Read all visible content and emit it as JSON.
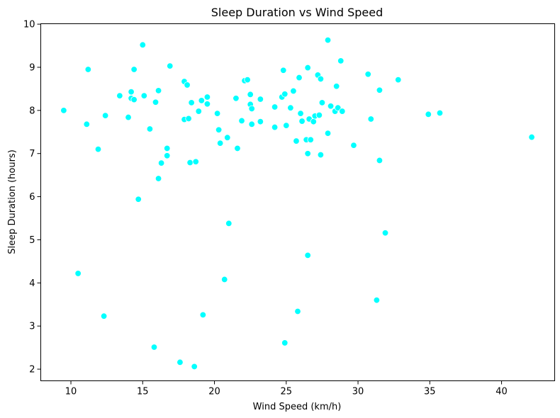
{
  "chart_data": {
    "type": "scatter",
    "title": "Sleep Duration vs Wind Speed",
    "xlabel": "Wind Speed (km/h)",
    "ylabel": "Sleep Duration (hours)",
    "xlim": [
      7.9,
      43.7
    ],
    "ylim": [
      1.73,
      10.01
    ],
    "xticks": [
      10,
      15,
      20,
      25,
      30,
      35,
      40
    ],
    "yticks": [
      2,
      3,
      4,
      5,
      6,
      7,
      8,
      9,
      10
    ],
    "grid": false,
    "point_color": "#00ffff",
    "series": [
      {
        "points": [
          [
            9.5,
            8.0
          ],
          [
            10.5,
            4.22
          ],
          [
            11.1,
            7.68
          ],
          [
            11.2,
            8.95
          ],
          [
            11.9,
            7.1
          ],
          [
            12.3,
            3.23
          ],
          [
            12.4,
            7.88
          ],
          [
            13.4,
            8.34
          ],
          [
            14.0,
            7.84
          ],
          [
            14.2,
            8.43
          ],
          [
            14.2,
            8.28
          ],
          [
            14.4,
            8.25
          ],
          [
            14.4,
            8.95
          ],
          [
            14.7,
            5.94
          ],
          [
            15.0,
            9.52
          ],
          [
            15.1,
            8.34
          ],
          [
            15.5,
            7.57
          ],
          [
            15.8,
            2.51
          ],
          [
            15.9,
            8.19
          ],
          [
            16.1,
            6.42
          ],
          [
            16.1,
            8.46
          ],
          [
            16.3,
            6.78
          ],
          [
            16.7,
            7.12
          ],
          [
            16.7,
            6.95
          ],
          [
            16.9,
            9.03
          ],
          [
            17.6,
            2.16
          ],
          [
            17.9,
            8.67
          ],
          [
            17.9,
            7.79
          ],
          [
            18.1,
            8.59
          ],
          [
            18.2,
            7.81
          ],
          [
            18.3,
            6.79
          ],
          [
            18.4,
            8.18
          ],
          [
            18.6,
            2.06
          ],
          [
            18.7,
            6.81
          ],
          [
            18.9,
            7.98
          ],
          [
            19.1,
            8.23
          ],
          [
            19.2,
            3.26
          ],
          [
            19.5,
            8.31
          ],
          [
            19.5,
            8.15
          ],
          [
            20.2,
            7.93
          ],
          [
            20.3,
            7.55
          ],
          [
            20.4,
            7.24
          ],
          [
            20.7,
            4.08
          ],
          [
            20.9,
            7.37
          ],
          [
            21.0,
            5.38
          ],
          [
            21.5,
            8.28
          ],
          [
            21.6,
            7.12
          ],
          [
            21.9,
            7.76
          ],
          [
            22.1,
            8.69
          ],
          [
            22.3,
            8.71
          ],
          [
            22.5,
            8.37
          ],
          [
            22.5,
            8.14
          ],
          [
            22.6,
            7.68
          ],
          [
            22.6,
            8.04
          ],
          [
            23.2,
            7.74
          ],
          [
            23.2,
            8.26
          ],
          [
            24.2,
            7.61
          ],
          [
            24.2,
            8.08
          ],
          [
            24.7,
            8.31
          ],
          [
            24.8,
            8.93
          ],
          [
            24.9,
            8.38
          ],
          [
            24.9,
            2.61
          ],
          [
            25.0,
            7.65
          ],
          [
            25.3,
            8.06
          ],
          [
            25.5,
            8.45
          ],
          [
            25.7,
            7.29
          ],
          [
            25.8,
            3.34
          ],
          [
            25.9,
            8.76
          ],
          [
            26.0,
            7.93
          ],
          [
            26.1,
            7.75
          ],
          [
            26.4,
            7.32
          ],
          [
            26.5,
            7.0
          ],
          [
            26.5,
            4.64
          ],
          [
            26.5,
            8.99
          ],
          [
            26.6,
            7.8
          ],
          [
            26.7,
            7.32
          ],
          [
            26.9,
            7.74
          ],
          [
            27.0,
            7.87
          ],
          [
            27.2,
            8.82
          ],
          [
            27.3,
            7.89
          ],
          [
            27.4,
            8.73
          ],
          [
            27.4,
            6.97
          ],
          [
            27.5,
            8.18
          ],
          [
            27.9,
            7.47
          ],
          [
            27.9,
            9.63
          ],
          [
            28.1,
            8.1
          ],
          [
            28.4,
            7.98
          ],
          [
            28.5,
            8.56
          ],
          [
            28.6,
            8.06
          ],
          [
            28.8,
            9.15
          ],
          [
            28.9,
            7.98
          ],
          [
            29.7,
            7.19
          ],
          [
            30.7,
            8.84
          ],
          [
            30.9,
            7.8
          ],
          [
            31.3,
            3.6
          ],
          [
            31.5,
            8.47
          ],
          [
            31.5,
            6.84
          ],
          [
            31.9,
            5.16
          ],
          [
            32.8,
            8.71
          ],
          [
            34.9,
            7.91
          ],
          [
            35.7,
            7.94
          ],
          [
            42.1,
            7.38
          ]
        ]
      }
    ]
  }
}
